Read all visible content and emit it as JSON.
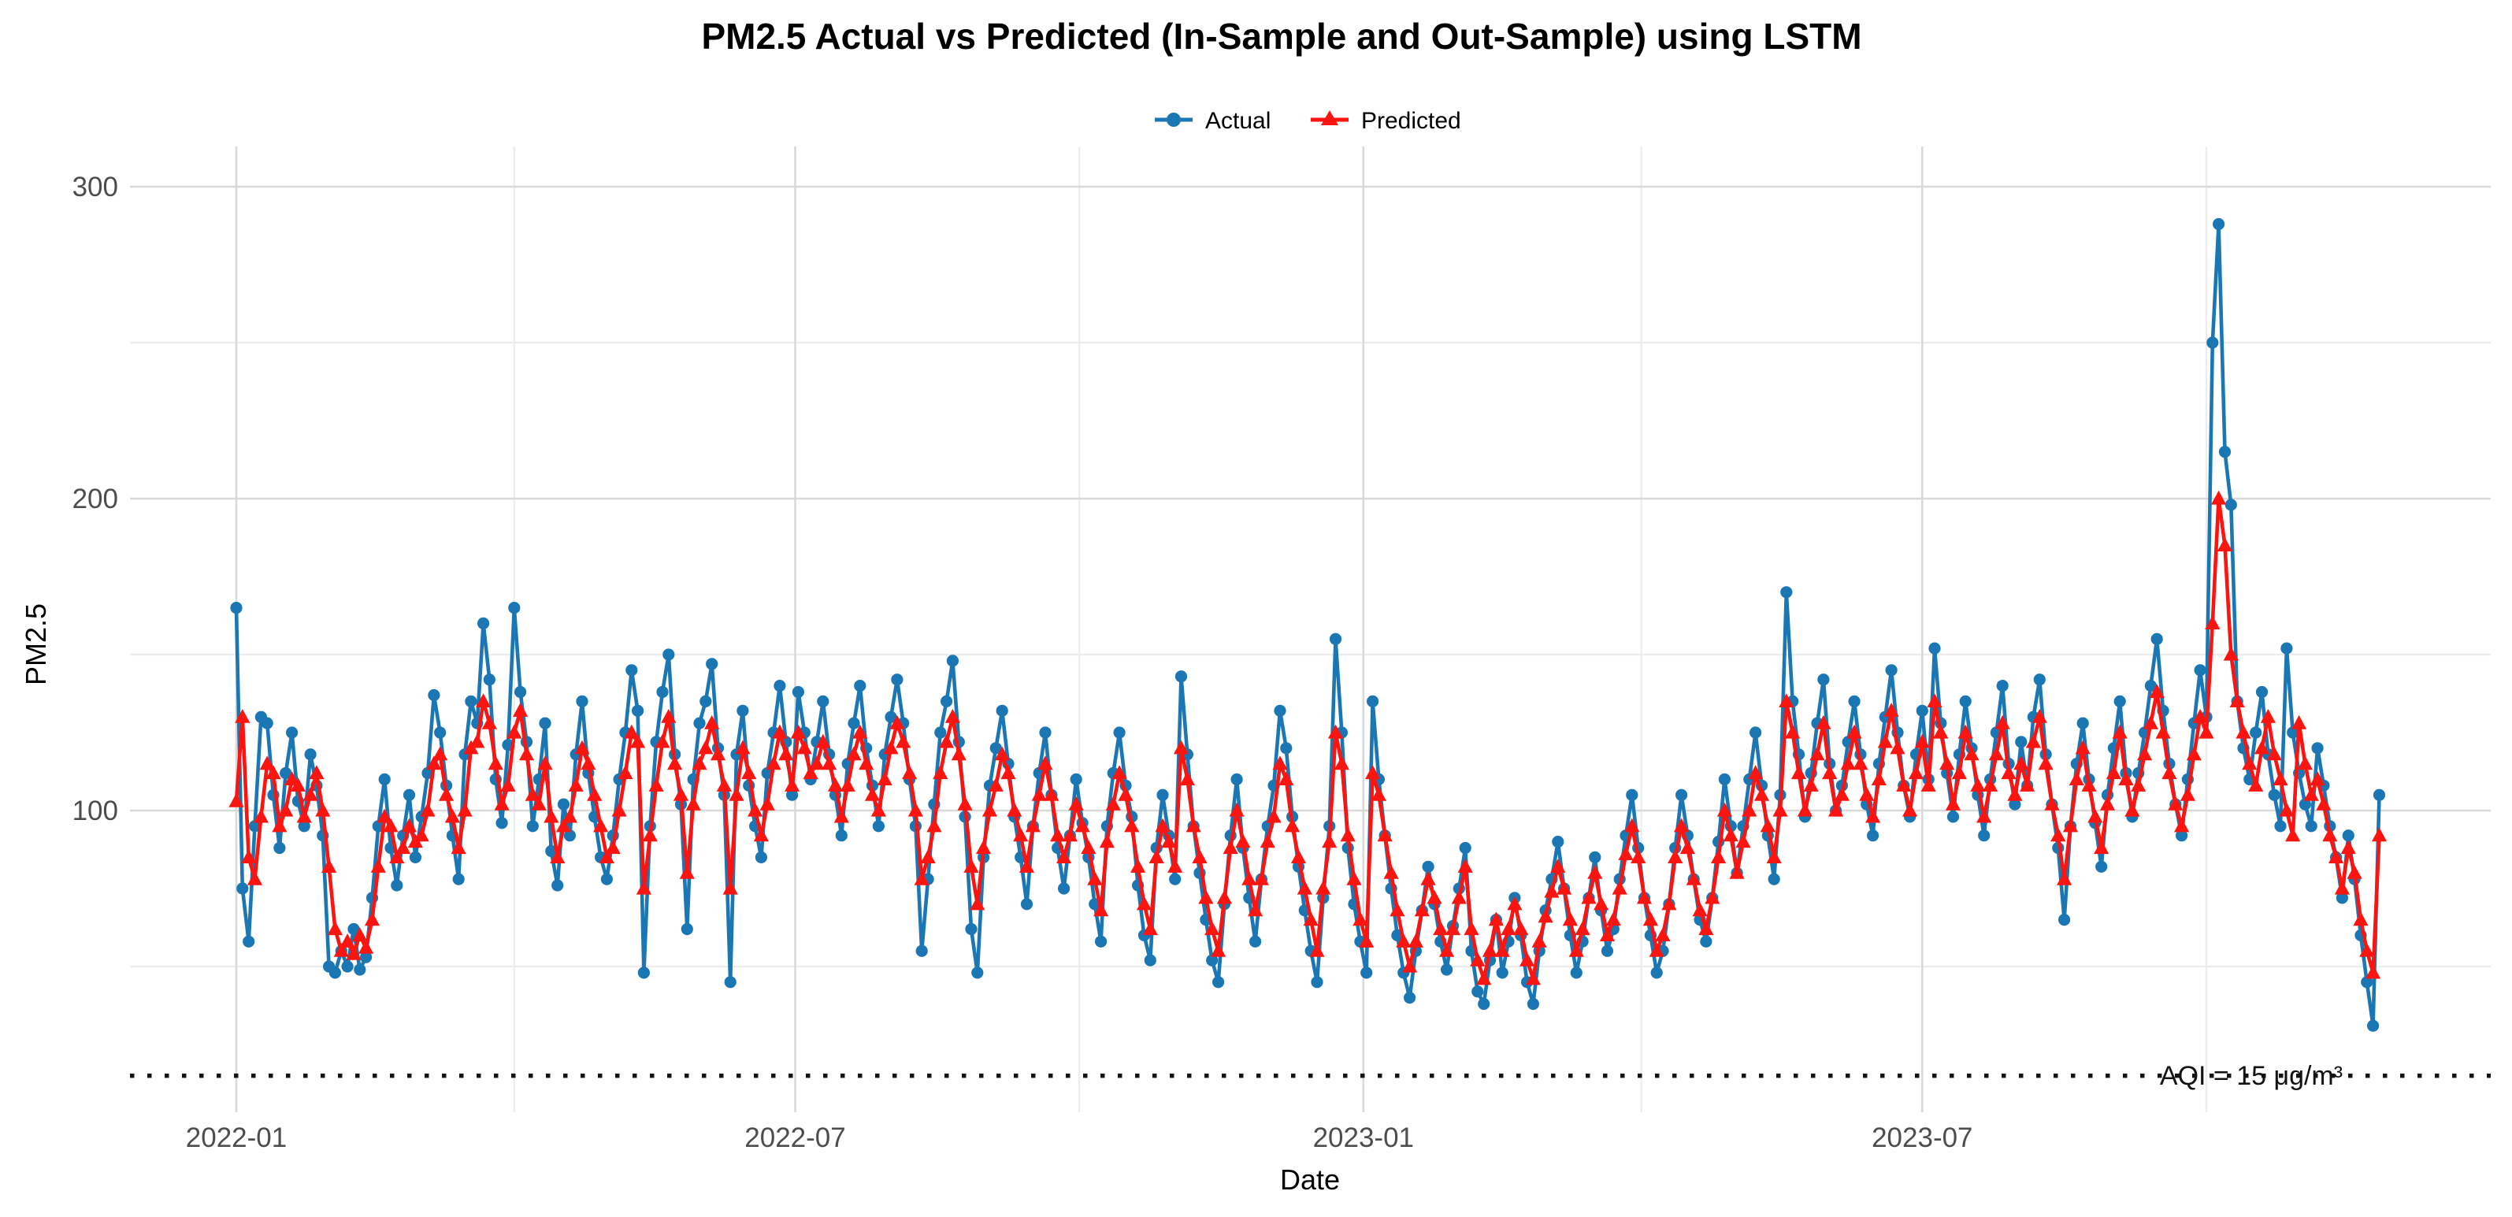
{
  "title": "PM2.5 Actual vs Predicted (In-Sample and Out-Sample) using LSTM",
  "axes": {
    "x_title": "Date",
    "y_title": "PM2.5"
  },
  "legend": {
    "items": [
      {
        "label": "Actual",
        "marker": "circle-icon",
        "color": "#1b77b4"
      },
      {
        "label": "Predicted",
        "marker": "triangle-icon",
        "color": "#fb1410"
      }
    ]
  },
  "colors": {
    "actual": "#1b77b4",
    "predicted": "#fb1410",
    "grid_major": "#d9d9d9",
    "grid_minor": "#ececec",
    "axis_text": "#4d4d4d",
    "threshold_line": "#141414",
    "background": "#ffffff"
  },
  "chart_data": {
    "type": "line",
    "title": "PM2.5 Actual vs Predicted (In-Sample and Out-Sample) using LSTM",
    "xlabel": "Date",
    "ylabel": "PM2.5",
    "x_start_date": "2022-01-01",
    "x_step_days": 2,
    "ylim": [
      0,
      310
    ],
    "grid": true,
    "legend_position": "top-center",
    "y_ticks_major": [
      {
        "label": "100",
        "value": 100
      },
      {
        "label": "200",
        "value": 200
      },
      {
        "label": "300",
        "value": 300
      }
    ],
    "y_ticks_minor_values": [
      50,
      150,
      250
    ],
    "x_ticks_major": [
      {
        "label": "2022-01",
        "day": 0
      },
      {
        "label": "2022-07",
        "day": 181
      },
      {
        "label": "2023-01",
        "day": 365
      },
      {
        "label": "2023-07",
        "day": 546
      }
    ],
    "x_ticks_minor_days": [
      90,
      273,
      455,
      638
    ],
    "threshold": {
      "value": 15,
      "label": "AQI = 15 μg/m³"
    },
    "series": [
      {
        "name": "Actual",
        "color": "#1b77b4",
        "marker": "circle",
        "values": [
          165,
          75,
          58,
          95,
          130,
          128,
          105,
          88,
          112,
          125,
          103,
          95,
          118,
          108,
          92,
          50,
          48,
          55,
          50,
          62,
          49,
          53,
          72,
          95,
          110,
          88,
          76,
          92,
          105,
          85,
          98,
          112,
          137,
          125,
          108,
          92,
          78,
          118,
          135,
          128,
          160,
          142,
          110,
          96,
          121,
          165,
          138,
          122,
          95,
          110,
          128,
          87,
          76,
          102,
          92,
          118,
          135,
          112,
          98,
          85,
          78,
          92,
          110,
          125,
          145,
          132,
          48,
          95,
          122,
          138,
          150,
          118,
          102,
          62,
          110,
          128,
          135,
          147,
          120,
          105,
          45,
          118,
          132,
          108,
          95,
          85,
          112,
          125,
          140,
          122,
          105,
          138,
          125,
          110,
          122,
          135,
          118,
          105,
          92,
          115,
          128,
          140,
          120,
          108,
          95,
          118,
          130,
          142,
          128,
          110,
          95,
          55,
          78,
          102,
          125,
          135,
          148,
          122,
          98,
          62,
          48,
          85,
          108,
          120,
          132,
          115,
          98,
          85,
          70,
          95,
          112,
          125,
          105,
          88,
          75,
          92,
          110,
          96,
          85,
          70,
          58,
          95,
          112,
          125,
          108,
          98,
          76,
          60,
          52,
          88,
          105,
          92,
          78,
          143,
          118,
          95,
          80,
          65,
          52,
          45,
          70,
          92,
          110,
          88,
          72,
          58,
          78,
          95,
          108,
          132,
          120,
          98,
          82,
          68,
          55,
          45,
          72,
          95,
          155,
          125,
          88,
          70,
          58,
          48,
          135,
          110,
          92,
          75,
          60,
          48,
          40,
          55,
          68,
          82,
          70,
          58,
          49,
          63,
          75,
          88,
          55,
          42,
          38,
          52,
          65,
          48,
          58,
          72,
          60,
          45,
          38,
          55,
          68,
          78,
          90,
          75,
          60,
          48,
          58,
          72,
          85,
          68,
          55,
          62,
          78,
          92,
          105,
          88,
          72,
          60,
          48,
          55,
          70,
          88,
          105,
          92,
          78,
          65,
          58,
          72,
          90,
          110,
          95,
          80,
          95,
          110,
          125,
          108,
          92,
          78,
          105,
          170,
          135,
          118,
          98,
          112,
          128,
          142,
          115,
          100,
          108,
          122,
          135,
          118,
          102,
          92,
          115,
          130,
          145,
          125,
          108,
          98,
          118,
          132,
          110,
          152,
          128,
          112,
          98,
          118,
          135,
          120,
          105,
          92,
          110,
          125,
          140,
          115,
          102,
          122,
          108,
          130,
          142,
          118,
          102,
          88,
          65,
          95,
          115,
          128,
          110,
          96,
          82,
          105,
          120,
          135,
          112,
          98,
          112,
          125,
          140,
          155,
          132,
          115,
          102,
          92,
          110,
          128,
          145,
          130,
          250,
          288,
          215,
          198,
          135,
          120,
          110,
          125,
          138,
          118,
          105,
          95,
          152,
          125,
          112,
          102,
          95,
          120,
          108,
          95,
          85,
          72,
          92,
          78,
          60,
          45,
          31,
          105
        ]
      },
      {
        "name": "Predicted",
        "color": "#fb1410",
        "marker": "triangle-up",
        "values": [
          103,
          130,
          85,
          78,
          98,
          115,
          112,
          95,
          100,
          110,
          108,
          98,
          105,
          112,
          100,
          82,
          62,
          55,
          58,
          54,
          60,
          56,
          65,
          82,
          98,
          95,
          85,
          88,
          95,
          90,
          92,
          100,
          115,
          118,
          105,
          98,
          88,
          100,
          120,
          122,
          135,
          128,
          115,
          102,
          108,
          125,
          132,
          118,
          105,
          102,
          115,
          98,
          85,
          95,
          98,
          108,
          120,
          115,
          105,
          95,
          85,
          88,
          100,
          112,
          125,
          122,
          75,
          92,
          108,
          122,
          130,
          115,
          105,
          80,
          102,
          115,
          120,
          128,
          118,
          108,
          75,
          105,
          120,
          112,
          100,
          92,
          102,
          115,
          125,
          118,
          108,
          125,
          120,
          112,
          115,
          122,
          115,
          108,
          98,
          108,
          118,
          125,
          115,
          105,
          100,
          110,
          120,
          128,
          122,
          112,
          100,
          78,
          85,
          95,
          112,
          122,
          130,
          118,
          102,
          82,
          70,
          88,
          100,
          108,
          118,
          112,
          100,
          92,
          82,
          95,
          105,
          115,
          105,
          92,
          85,
          92,
          102,
          95,
          88,
          78,
          68,
          90,
          102,
          112,
          105,
          95,
          82,
          70,
          62,
          85,
          95,
          90,
          82,
          120,
          110,
          95,
          85,
          72,
          62,
          55,
          72,
          88,
          100,
          90,
          78,
          68,
          78,
          90,
          98,
          115,
          110,
          95,
          85,
          75,
          65,
          55,
          75,
          90,
          125,
          115,
          92,
          78,
          65,
          58,
          112,
          105,
          92,
          80,
          68,
          58,
          50,
          58,
          68,
          78,
          72,
          62,
          55,
          62,
          72,
          82,
          62,
          52,
          46,
          55,
          65,
          55,
          62,
          70,
          62,
          52,
          46,
          58,
          66,
          74,
          82,
          75,
          65,
          55,
          62,
          72,
          80,
          70,
          60,
          65,
          75,
          86,
          95,
          85,
          72,
          65,
          55,
          60,
          70,
          85,
          95,
          88,
          78,
          68,
          62,
          72,
          85,
          100,
          92,
          80,
          90,
          100,
          112,
          105,
          95,
          85,
          100,
          135,
          125,
          112,
          100,
          108,
          118,
          128,
          112,
          100,
          105,
          115,
          125,
          115,
          105,
          98,
          110,
          122,
          132,
          120,
          108,
          100,
          112,
          122,
          108,
          135,
          125,
          115,
          102,
          112,
          125,
          118,
          108,
          98,
          108,
          118,
          128,
          112,
          105,
          115,
          108,
          122,
          130,
          115,
          102,
          92,
          78,
          95,
          110,
          120,
          108,
          98,
          88,
          102,
          112,
          125,
          110,
          100,
          108,
          118,
          128,
          138,
          125,
          112,
          102,
          95,
          105,
          118,
          130,
          125,
          160,
          200,
          185,
          150,
          135,
          125,
          115,
          108,
          120,
          130,
          118,
          110,
          100,
          92,
          128,
          115,
          105,
          110,
          102,
          92,
          85,
          75,
          88,
          80,
          65,
          55,
          48,
          92
        ]
      }
    ]
  }
}
